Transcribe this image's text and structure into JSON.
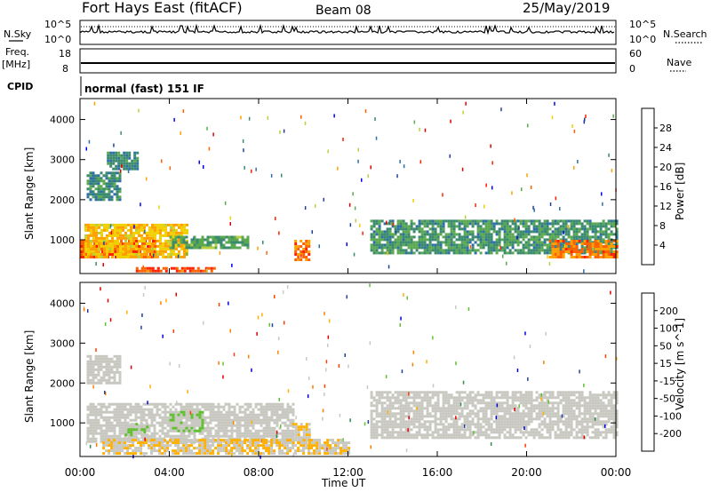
{
  "header": {
    "station": "Fort Hays East (fitACF)",
    "beam": "Beam 08",
    "date": "25/May/2019"
  },
  "top_panels": {
    "nsky_label": "N.Sky",
    "nsearch_label": "N.Search",
    "freq_label": "Freq.",
    "freq_unit": "[MHz]",
    "nave_label": "Nave",
    "cpid_label": "CPID",
    "cpid_value": "normal (fast) 151 IF",
    "noise_ticks": [
      "10^5",
      "10^0"
    ],
    "freq_ticks": [
      "18",
      "8"
    ],
    "nave_ticks": [
      "60",
      "0"
    ]
  },
  "chart_data": [
    {
      "type": "heatmap",
      "title": "",
      "ylabel": "Slant Range [km]",
      "xlabel": "",
      "y_ticks": [
        "4000",
        "3000",
        "2000",
        "1000"
      ],
      "y_range": [
        180,
        4500
      ],
      "colorbar": {
        "label": "Power [dB]",
        "ticks": [
          "28",
          "24",
          "20",
          "16",
          "12",
          "8",
          "4"
        ],
        "range": [
          0,
          32
        ],
        "colors": [
          "#0000ff",
          "#1e3fa0",
          "#2e6fa8",
          "#3a8a6e",
          "#5aa850",
          "#b8d040",
          "#f0d000",
          "#ffa000",
          "#ff6000",
          "#ff2000",
          "#e00000"
        ]
      },
      "regions": [
        {
          "t": [
            0.0,
            3.4
          ],
          "r": [
            600,
            1000
          ],
          "value": 26
        },
        {
          "t": [
            0.2,
            4.8
          ],
          "r": [
            600,
            1400
          ],
          "value": 20
        },
        {
          "t": [
            4.0,
            7.5
          ],
          "r": [
            800,
            1100
          ],
          "value": 12
        },
        {
          "t": [
            9.6,
            10.3
          ],
          "r": [
            500,
            1000
          ],
          "value": 24
        },
        {
          "t": [
            13.0,
            24.0
          ],
          "r": [
            700,
            1500
          ],
          "value": 11
        },
        {
          "t": [
            21.0,
            24.0
          ],
          "r": [
            600,
            1000
          ],
          "value": 24
        },
        {
          "t": [
            2.5,
            6.0
          ],
          "r": [
            200,
            320
          ],
          "value": 26
        },
        {
          "t": [
            0.3,
            1.8
          ],
          "r": [
            2000,
            2700
          ],
          "value": 10
        },
        {
          "t": [
            1.2,
            2.6
          ],
          "r": [
            2800,
            3200
          ],
          "value": 10
        }
      ]
    },
    {
      "type": "heatmap",
      "title": "",
      "ylabel": "Slant Range [km]",
      "xlabel": "Time UT",
      "x_ticks": [
        "00:00",
        "04:00",
        "08:00",
        "12:00",
        "16:00",
        "20:00",
        "00:00"
      ],
      "y_ticks": [
        "4000",
        "3000",
        "2000",
        "1000"
      ],
      "y_range": [
        180,
        4500
      ],
      "colorbar": {
        "label": "Velocity [m s^-1]",
        "ticks": [
          "200",
          "100",
          "50",
          "15",
          "-15",
          "-50",
          "-100",
          "-200"
        ],
        "range": [
          -250,
          250
        ],
        "colors": [
          "#e00000",
          "#ff4000",
          "#ff8000",
          "#ffb000",
          "#c8c8c0",
          "#c8c8c0",
          "#60c030",
          "#308a50",
          "#2040a0",
          "#0000e0"
        ]
      },
      "regions": [
        {
          "t": [
            0.3,
            9.5
          ],
          "r": [
            500,
            1500
          ],
          "value": 0
        },
        {
          "t": [
            2.0,
            3.0
          ],
          "r": [
            600,
            1000
          ],
          "value": 40
        },
        {
          "t": [
            4.0,
            5.5
          ],
          "r": [
            800,
            1300
          ],
          "value": 40
        },
        {
          "t": [
            1.0,
            12.0
          ],
          "r": [
            200,
            600
          ],
          "value": -40
        },
        {
          "t": [
            13.0,
            24.0
          ],
          "r": [
            600,
            1800
          ],
          "value": 0
        },
        {
          "t": [
            9.5,
            10.3
          ],
          "r": [
            500,
            1000
          ],
          "value": -40
        },
        {
          "t": [
            0.3,
            1.8
          ],
          "r": [
            2000,
            2700
          ],
          "value": 0
        }
      ]
    }
  ]
}
